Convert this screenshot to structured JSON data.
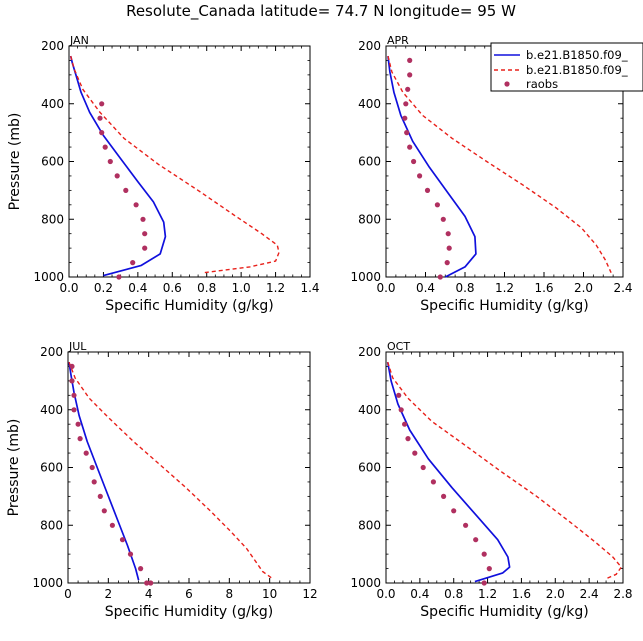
{
  "title": "Resolute_Canada  latitude= 74.7 N longitude= 95 W",
  "colors": {
    "model1": "#1010dd",
    "model2": "#e8201a",
    "raobs": "#b03060"
  },
  "legend": {
    "entries": [
      "b.e21.B1850.f09_",
      "b.e21.B1850.f09_",
      "raobs"
    ]
  },
  "chart_data": [
    {
      "type": "line",
      "panel": "JAN",
      "xlabel": "Specific Humidity (g/kg)",
      "ylabel": "Pressure (mb)",
      "xlim": [
        0,
        1.4
      ],
      "ylim": [
        200,
        1000
      ],
      "x_ticks": [
        "0.0",
        "0.2",
        "0.4",
        "0.6",
        "0.8",
        "1.0",
        "1.2",
        "1.4"
      ],
      "y_ticks": [
        "200",
        "400",
        "600",
        "800",
        "1000"
      ],
      "series": [
        {
          "name": "b.e21.B1850.f09_",
          "style": "solid",
          "color": "#1010dd",
          "points": [
            [
              0.01,
              235
            ],
            [
              0.02,
              260
            ],
            [
              0.04,
              300
            ],
            [
              0.07,
              360
            ],
            [
              0.12,
              430
            ],
            [
              0.2,
              510
            ],
            [
              0.3,
              590
            ],
            [
              0.4,
              670
            ],
            [
              0.49,
              740
            ],
            [
              0.55,
              810
            ],
            [
              0.56,
              860
            ],
            [
              0.53,
              920
            ],
            [
              0.42,
              960
            ],
            [
              0.2,
              995
            ]
          ]
        },
        {
          "name": "b.e21.B1850.f09_",
          "style": "dashed",
          "color": "#e8201a",
          "points": [
            [
              0.01,
              235
            ],
            [
              0.03,
              280
            ],
            [
              0.08,
              350
            ],
            [
              0.18,
              430
            ],
            [
              0.32,
              520
            ],
            [
              0.52,
              610
            ],
            [
              0.75,
              700
            ],
            [
              0.97,
              790
            ],
            [
              1.12,
              850
            ],
            [
              1.21,
              890
            ],
            [
              1.22,
              915
            ],
            [
              1.2,
              945
            ],
            [
              1.05,
              965
            ],
            [
              0.78,
              985
            ]
          ]
        }
      ],
      "raobs": [
        [
          0.19,
          400
        ],
        [
          0.18,
          450
        ],
        [
          0.19,
          500
        ],
        [
          0.21,
          550
        ],
        [
          0.24,
          600
        ],
        [
          0.28,
          650
        ],
        [
          0.33,
          700
        ],
        [
          0.39,
          750
        ],
        [
          0.43,
          800
        ],
        [
          0.44,
          850
        ],
        [
          0.44,
          900
        ],
        [
          0.37,
          950
        ],
        [
          0.29,
          1000
        ]
      ]
    },
    {
      "type": "line",
      "panel": "APR",
      "xlabel": "Specific Humidity (g/kg)",
      "ylabel": "",
      "xlim": [
        0,
        2.4
      ],
      "ylim": [
        200,
        1000
      ],
      "x_ticks": [
        "0.0",
        "0.4",
        "0.8",
        "1.2",
        "1.6",
        "2.0",
        "2.4"
      ],
      "y_ticks": [
        "200",
        "400",
        "600",
        "800",
        "1000"
      ],
      "series": [
        {
          "name": "b.e21.B1850.f09_",
          "style": "solid",
          "color": "#1010dd",
          "points": [
            [
              0.02,
              235
            ],
            [
              0.04,
              290
            ],
            [
              0.08,
              360
            ],
            [
              0.15,
              440
            ],
            [
              0.27,
              530
            ],
            [
              0.44,
              620
            ],
            [
              0.63,
              710
            ],
            [
              0.8,
              790
            ],
            [
              0.9,
              860
            ],
            [
              0.91,
              920
            ],
            [
              0.8,
              965
            ],
            [
              0.6,
              1000
            ]
          ]
        },
        {
          "name": "b.e21.B1850.f09_",
          "style": "dashed",
          "color": "#e8201a",
          "points": [
            [
              0.02,
              235
            ],
            [
              0.06,
              290
            ],
            [
              0.17,
              360
            ],
            [
              0.37,
              440
            ],
            [
              0.67,
              520
            ],
            [
              1.02,
              600
            ],
            [
              1.38,
              680
            ],
            [
              1.72,
              760
            ],
            [
              1.98,
              830
            ],
            [
              2.13,
              890
            ],
            [
              2.22,
              940
            ],
            [
              2.28,
              985
            ]
          ]
        }
      ],
      "raobs": [
        [
          0.24,
          250
        ],
        [
          0.24,
          300
        ],
        [
          0.22,
          350
        ],
        [
          0.2,
          400
        ],
        [
          0.19,
          450
        ],
        [
          0.21,
          500
        ],
        [
          0.24,
          550
        ],
        [
          0.28,
          600
        ],
        [
          0.34,
          650
        ],
        [
          0.42,
          700
        ],
        [
          0.52,
          750
        ],
        [
          0.58,
          800
        ],
        [
          0.63,
          850
        ],
        [
          0.64,
          900
        ],
        [
          0.62,
          950
        ],
        [
          0.55,
          1000
        ]
      ]
    },
    {
      "type": "line",
      "panel": "JUL",
      "xlabel": "Specific Humidity (g/kg)",
      "ylabel": "Pressure (mb)",
      "xlim": [
        0,
        12
      ],
      "ylim": [
        200,
        1000
      ],
      "x_ticks": [
        "0",
        "2",
        "4",
        "6",
        "8",
        "10",
        "12"
      ],
      "y_ticks": [
        "200",
        "400",
        "600",
        "800",
        "1000"
      ],
      "series": [
        {
          "name": "b.e21.B1850.f09_",
          "style": "solid",
          "color": "#1010dd",
          "points": [
            [
              0.05,
              235
            ],
            [
              0.15,
              280
            ],
            [
              0.3,
              340
            ],
            [
              0.55,
              420
            ],
            [
              0.95,
              510
            ],
            [
              1.45,
              600
            ],
            [
              1.95,
              690
            ],
            [
              2.45,
              780
            ],
            [
              2.95,
              870
            ],
            [
              3.35,
              950
            ],
            [
              3.5,
              990
            ]
          ]
        },
        {
          "name": "b.e21.B1850.f09_",
          "style": "dashed",
          "color": "#e8201a",
          "points": [
            [
              0.05,
              235
            ],
            [
              0.35,
              290
            ],
            [
              1.05,
              360
            ],
            [
              2.05,
              430
            ],
            [
              3.25,
              510
            ],
            [
              4.55,
              590
            ],
            [
              5.85,
              670
            ],
            [
              7.05,
              750
            ],
            [
              8.05,
              820
            ],
            [
              8.85,
              880
            ],
            [
              9.35,
              930
            ],
            [
              9.65,
              960
            ],
            [
              10.15,
              985
            ]
          ]
        }
      ],
      "raobs": [
        [
          0.2,
          250
        ],
        [
          0.2,
          300
        ],
        [
          0.3,
          350
        ],
        [
          0.3,
          400
        ],
        [
          0.5,
          450
        ],
        [
          0.6,
          500
        ],
        [
          0.9,
          550
        ],
        [
          1.2,
          600
        ],
        [
          1.3,
          650
        ],
        [
          1.6,
          700
        ],
        [
          1.8,
          750
        ],
        [
          2.2,
          800
        ],
        [
          2.7,
          850
        ],
        [
          3.1,
          900
        ],
        [
          3.6,
          950
        ],
        [
          3.9,
          1000
        ],
        [
          4.1,
          1000
        ]
      ]
    },
    {
      "type": "line",
      "panel": "OCT",
      "xlabel": "Specific Humidity (g/kg)",
      "ylabel": "",
      "xlim": [
        0,
        2.8
      ],
      "ylim": [
        200,
        1000
      ],
      "x_ticks": [
        "0.0",
        "0.4",
        "0.8",
        "1.2",
        "1.6",
        "2.0",
        "2.4",
        "2.8"
      ],
      "y_ticks": [
        "200",
        "400",
        "600",
        "800",
        "1000"
      ],
      "series": [
        {
          "name": "b.e21.B1850.f09_",
          "style": "solid",
          "color": "#1010dd",
          "points": [
            [
              0.02,
              235
            ],
            [
              0.06,
              300
            ],
            [
              0.14,
              380
            ],
            [
              0.28,
              470
            ],
            [
              0.5,
              570
            ],
            [
              0.78,
              670
            ],
            [
              1.08,
              770
            ],
            [
              1.32,
              850
            ],
            [
              1.44,
              910
            ],
            [
              1.46,
              945
            ],
            [
              1.38,
              965
            ],
            [
              1.05,
              995
            ]
          ]
        },
        {
          "name": "b.e21.B1850.f09_",
          "style": "dashed",
          "color": "#e8201a",
          "points": [
            [
              0.02,
              235
            ],
            [
              0.08,
              290
            ],
            [
              0.26,
              360
            ],
            [
              0.54,
              440
            ],
            [
              0.92,
              520
            ],
            [
              1.34,
              610
            ],
            [
              1.78,
              700
            ],
            [
              2.18,
              790
            ],
            [
              2.48,
              860
            ],
            [
              2.68,
              910
            ],
            [
              2.78,
              945
            ],
            [
              2.72,
              970
            ],
            [
              2.6,
              985
            ]
          ]
        }
      ],
      "raobs": [
        [
          0.15,
          350
        ],
        [
          0.18,
          400
        ],
        [
          0.22,
          450
        ],
        [
          0.26,
          500
        ],
        [
          0.34,
          550
        ],
        [
          0.44,
          600
        ],
        [
          0.56,
          650
        ],
        [
          0.68,
          700
        ],
        [
          0.8,
          750
        ],
        [
          0.94,
          800
        ],
        [
          1.06,
          850
        ],
        [
          1.16,
          900
        ],
        [
          1.22,
          950
        ],
        [
          1.16,
          1000
        ]
      ]
    }
  ]
}
